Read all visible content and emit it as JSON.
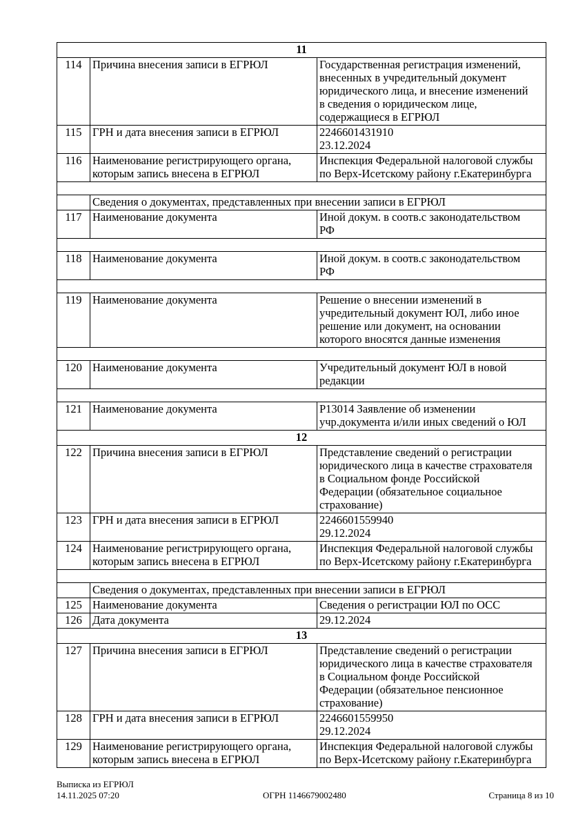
{
  "document": {
    "table": {
      "rows": [
        {
          "type": "section",
          "num": "11"
        },
        {
          "type": "data",
          "num": "114",
          "label": "Причина внесения записи в ЕГРЮЛ",
          "value": "Государственная регистрация изменений,\nвнесенных в учредительный документ\nюридического лица, и внесение изменений\nв сведения о юридическом лице,\nсодержащиеся в ЕГРЮЛ"
        },
        {
          "type": "data",
          "num": "115",
          "label": "ГРН и дата внесения записи в ЕГРЮЛ",
          "value": "2246601431910\n23.12.2024"
        },
        {
          "type": "data",
          "num": "116",
          "label": "Наименование регистрирующего органа,\nкоторым запись внесена в ЕГРЮЛ",
          "value": "Инспекция Федеральной налоговой службы\nпо Верх-Исетскому району г.Екатеринбурга"
        },
        {
          "type": "spacer"
        },
        {
          "type": "subheader",
          "label": "Сведения о документах, представленных при внесении записи в ЕГРЮЛ"
        },
        {
          "type": "data",
          "num": "117",
          "label": "Наименование документа",
          "value": "Иной докум. в соотв.с законодательством\nРФ"
        },
        {
          "type": "spacer"
        },
        {
          "type": "data",
          "num": "118",
          "label": "Наименование документа",
          "value": "Иной докум. в соотв.с законодательством\nРФ"
        },
        {
          "type": "spacer"
        },
        {
          "type": "data",
          "num": "119",
          "label": "Наименование документа",
          "value": "Решение о внесении изменений в\nучредительный документ ЮЛ, либо иное\nрешение или документ, на основании\nкоторого вносятся данные изменения"
        },
        {
          "type": "spacer"
        },
        {
          "type": "data",
          "num": "120",
          "label": "Наименование документа",
          "value": "Учредительный документ ЮЛ в новой\nредакции"
        },
        {
          "type": "spacer"
        },
        {
          "type": "data",
          "num": "121",
          "label": "Наименование документа",
          "value": "Р13014 Заявление об изменении\nучр.документа и/или иных сведений о ЮЛ"
        },
        {
          "type": "section",
          "num": "12"
        },
        {
          "type": "data",
          "num": "122",
          "label": "Причина внесения записи в ЕГРЮЛ",
          "value": "Представление сведений о регистрации\nюридического лица в качестве страхователя\nв Социальном фонде Российской\nФедерации (обязательное социальное\nстрахование)"
        },
        {
          "type": "data",
          "num": "123",
          "label": "ГРН и дата внесения записи в ЕГРЮЛ",
          "value": "2246601559940\n29.12.2024"
        },
        {
          "type": "data",
          "num": "124",
          "label": "Наименование регистрирующего органа,\nкоторым запись внесена в ЕГРЮЛ",
          "value": "Инспекция Федеральной налоговой службы\nпо Верх-Исетскому району г.Екатеринбурга"
        },
        {
          "type": "spacer"
        },
        {
          "type": "subheader",
          "label": "Сведения о документах, представленных при внесении записи в ЕГРЮЛ"
        },
        {
          "type": "data",
          "num": "125",
          "label": "Наименование документа",
          "value": "Сведения о регистрации ЮЛ по ОСС"
        },
        {
          "type": "data",
          "num": "126",
          "label": "Дата документа",
          "value": "29.12.2024"
        },
        {
          "type": "section",
          "num": "13"
        },
        {
          "type": "data",
          "num": "127",
          "label": "Причина внесения записи в ЕГРЮЛ",
          "value": "Представление сведений о регистрации\nюридического лица в качестве страхователя\nв Социальном фонде Российской\nФедерации (обязательное пенсионное\nстрахование)"
        },
        {
          "type": "data",
          "num": "128",
          "label": "ГРН и дата внесения записи в ЕГРЮЛ",
          "value": "2246601559950\n29.12.2024"
        },
        {
          "type": "data",
          "num": "129",
          "label": "Наименование регистрирующего органа,\nкоторым запись внесена в ЕГРЮЛ",
          "value": "Инспекция Федеральной налоговой службы\nпо Верх-Исетскому району г.Екатеринбурга"
        }
      ]
    },
    "footer": {
      "doc_title": "Выписка из ЕГРЮЛ",
      "generated_datetime": "14.11.2025 07:20",
      "ogrn": "ОГРН 1146679002480",
      "page_label": "Страница 8 из 10"
    }
  }
}
